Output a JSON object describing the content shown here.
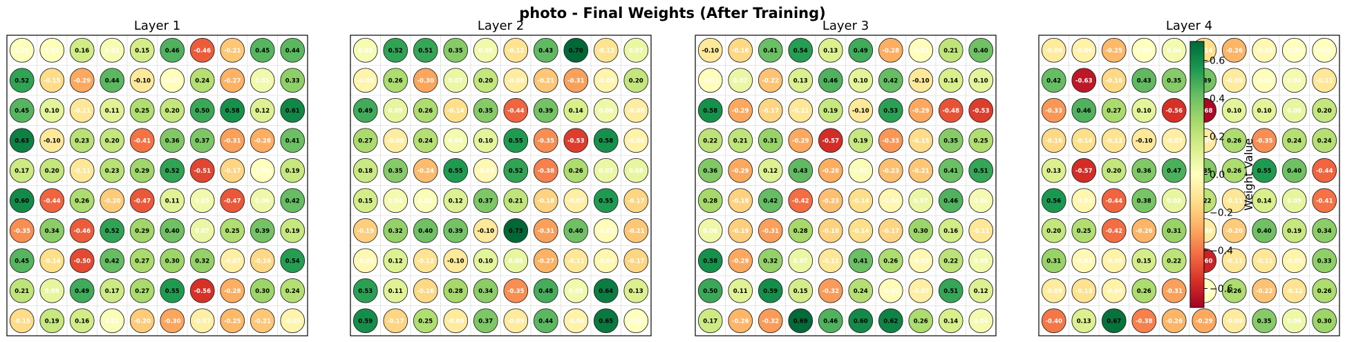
{
  "suptitle": "photo - Final Weights (After Training)",
  "colorbar": {
    "label": "Weight Value",
    "ticks": [
      "0.6",
      "0.4",
      "0.2",
      "0.0",
      "−0.2",
      "−0.4",
      "−0.6"
    ],
    "tick_values": [
      0.6,
      0.4,
      0.2,
      0.0,
      -0.2,
      -0.4,
      -0.6
    ],
    "range": [
      -0.7,
      0.7
    ],
    "colormap": "RdYlGn"
  },
  "chart_data": [
    {
      "type": "heatmap",
      "title": "Layer 1",
      "rows": 10,
      "cols": 10,
      "values": [
        [
          0.01,
          0.01,
          0.16,
          0.03,
          0.15,
          0.46,
          -0.46,
          -0.21,
          0.45,
          0.44
        ],
        [
          0.52,
          -0.15,
          -0.29,
          0.44,
          -0.1,
          -0.01,
          0.24,
          -0.27,
          0.05,
          0.33
        ],
        [
          0.45,
          0.1,
          -0.11,
          0.11,
          0.25,
          0.2,
          0.5,
          0.58,
          0.12,
          0.61
        ],
        [
          0.63,
          -0.1,
          0.23,
          0.2,
          -0.41,
          0.36,
          0.37,
          -0.31,
          -0.28,
          0.41
        ],
        [
          0.17,
          0.2,
          -0.11,
          0.23,
          0.29,
          0.52,
          -0.51,
          -0.17,
          0.0,
          0.19
        ],
        [
          0.6,
          -0.44,
          0.26,
          -0.2,
          -0.47,
          0.11,
          0.05,
          -0.47,
          0.06,
          0.42
        ],
        [
          -0.35,
          0.34,
          -0.46,
          0.52,
          0.29,
          0.4,
          0.07,
          0.25,
          0.39,
          0.19
        ],
        [
          0.45,
          -0.14,
          -0.5,
          0.42,
          0.27,
          0.3,
          0.32,
          -0.07,
          -0.16,
          0.54
        ],
        [
          0.21,
          0.09,
          0.49,
          0.17,
          0.27,
          0.55,
          -0.56,
          -0.28,
          0.3,
          0.24
        ],
        [
          -0.15,
          0.19,
          0.16,
          0.02,
          -0.2,
          -0.3,
          -0.07,
          -0.25,
          -0.21,
          -0.05
        ]
      ]
    },
    {
      "type": "heatmap",
      "title": "Layer 2",
      "rows": 10,
      "cols": 10,
      "values": [
        [
          0.03,
          0.52,
          0.51,
          0.35,
          0.05,
          -0.12,
          0.43,
          0.7,
          -0.12,
          0.07
        ],
        [
          -0.05,
          0.26,
          -0.3,
          0.07,
          0.2,
          -0.08,
          -0.21,
          -0.31,
          -0.05,
          0.2
        ],
        [
          0.49,
          0.09,
          0.26,
          -0.14,
          0.35,
          -0.44,
          0.39,
          0.14,
          0.06,
          -0.08
        ],
        [
          0.27,
          -0.08,
          0.24,
          0.04,
          0.1,
          0.55,
          -0.35,
          -0.53,
          0.58,
          -0.06
        ],
        [
          0.18,
          0.35,
          -0.24,
          0.55,
          -0.03,
          0.52,
          -0.38,
          0.26,
          0.07,
          0.08
        ],
        [
          0.15,
          0.04,
          0.02,
          0.12,
          0.37,
          0.21,
          -0.18,
          -0.07,
          0.55,
          -0.17
        ],
        [
          -0.19,
          0.32,
          0.4,
          0.39,
          -0.1,
          0.73,
          -0.31,
          0.4,
          -0.02,
          -0.21
        ],
        [
          -0.03,
          0.12,
          -0.12,
          -0.1,
          0.1,
          0.08,
          -0.27,
          -0.11,
          -0.04,
          -0.17
        ],
        [
          0.53,
          0.11,
          -0.16,
          0.28,
          0.34,
          -0.35,
          0.48,
          0.05,
          0.64,
          0.13
        ],
        [
          0.59,
          -0.17,
          0.25,
          -0.09,
          0.37,
          -0.09,
          0.44,
          -0.06,
          0.65,
          0.0
        ]
      ]
    },
    {
      "type": "heatmap",
      "title": "Layer 3",
      "rows": 10,
      "cols": 10,
      "values": [
        [
          -0.1,
          -0.16,
          0.41,
          0.54,
          0.13,
          0.49,
          -0.28,
          -0.01,
          0.21,
          0.4
        ],
        [
          -0.01,
          0.07,
          -0.22,
          0.13,
          0.46,
          0.1,
          0.42,
          -0.1,
          0.14,
          0.1
        ],
        [
          0.58,
          -0.29,
          -0.17,
          -0.11,
          0.19,
          -0.1,
          0.53,
          -0.29,
          -0.48,
          -0.53
        ],
        [
          0.22,
          0.21,
          0.31,
          -0.29,
          -0.57,
          0.19,
          -0.33,
          -0.15,
          0.35,
          0.25
        ],
        [
          0.36,
          -0.29,
          0.12,
          0.43,
          -0.28,
          0.02,
          -0.23,
          -0.21,
          0.41,
          0.51
        ],
        [
          0.28,
          -0.18,
          0.42,
          -0.42,
          -0.23,
          -0.14,
          -0.04,
          0.07,
          0.46,
          0.04
        ],
        [
          0.06,
          -0.19,
          -0.31,
          0.28,
          -0.18,
          -0.14,
          -0.17,
          0.3,
          0.16,
          -0.11
        ],
        [
          0.58,
          -0.29,
          0.32,
          0.07,
          -0.11,
          0.41,
          0.26,
          -0.03,
          0.22,
          0.05
        ],
        [
          0.5,
          0.11,
          0.59,
          0.15,
          -0.32,
          0.24,
          -0.02,
          -0.07,
          0.51,
          0.12
        ],
        [
          0.17,
          -0.26,
          -0.32,
          0.69,
          0.46,
          0.6,
          0.62,
          0.26,
          0.14,
          0.04
        ]
      ]
    },
    {
      "type": "heatmap",
      "title": "Layer 4",
      "rows": 10,
      "cols": 10,
      "values": [
        [
          -0.09,
          -0.06,
          -0.25,
          0.0,
          0.04,
          -0.14,
          -0.26,
          -0.03,
          0.0,
          0.0
        ],
        [
          0.42,
          -0.63,
          -0.16,
          0.43,
          0.35,
          0.39,
          -0.09,
          -0.01,
          0.04,
          -0.11
        ],
        [
          -0.33,
          0.46,
          0.27,
          0.1,
          -0.56,
          -0.68,
          0.1,
          0.1,
          0.08,
          0.2
        ],
        [
          -0.16,
          -0.14,
          -0.12,
          -0.1,
          -0.07,
          -0.09,
          0.26,
          -0.35,
          0.24,
          0.24
        ],
        [
          0.13,
          -0.57,
          0.2,
          0.36,
          0.47,
          0.35,
          0.26,
          0.55,
          0.4,
          -0.44
        ],
        [
          0.56,
          -0.04,
          -0.44,
          0.38,
          0.08,
          0.22,
          -0.11,
          0.14,
          0.09,
          -0.41
        ],
        [
          0.2,
          0.25,
          -0.42,
          -0.26,
          0.31,
          -0.08,
          -0.2,
          0.4,
          0.19,
          0.34
        ],
        [
          0.31,
          -0.03,
          -0.06,
          0.15,
          0.22,
          -0.6,
          -0.11,
          -0.11,
          -0.05,
          0.33
        ],
        [
          -0.09,
          -0.13,
          -0.06,
          0.26,
          -0.31,
          0.0,
          0.26,
          -0.22,
          -0.12,
          0.26
        ],
        [
          -0.4,
          0.13,
          0.67,
          -0.38,
          -0.26,
          -0.29,
          -0.09,
          0.35,
          0.06,
          0.3
        ]
      ]
    }
  ]
}
